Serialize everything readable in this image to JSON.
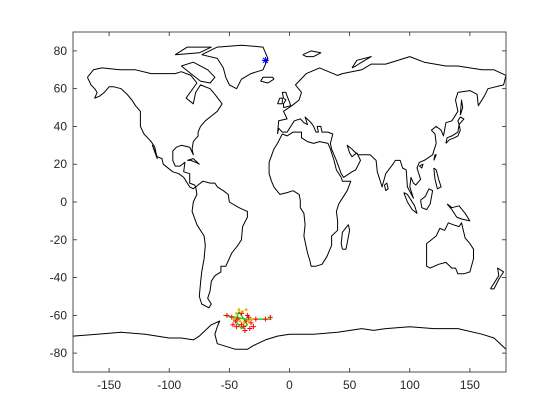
{
  "chart_data": {
    "type": "scatter",
    "xlim": [
      -180,
      180
    ],
    "ylim": [
      -90,
      90
    ],
    "x_ticks": [
      -150,
      -100,
      -50,
      0,
      50,
      100,
      150
    ],
    "y_ticks": [
      -80,
      -60,
      -40,
      -20,
      0,
      20,
      40,
      60,
      80
    ],
    "grid": false,
    "background_map": "world coastline outlines",
    "colors": {
      "axes": "#262626",
      "coastline": "#000000",
      "marker_star": "#0000ff",
      "track_green": "#00cc00",
      "track_red": "#ff0000",
      "track_yellow": "#e6b800"
    },
    "series": [
      {
        "marker": "asterisk",
        "color": "#0000ff",
        "points": [
          [
            -20,
            75
          ]
        ]
      },
      {
        "marker": "line",
        "color": "#00cc00",
        "points": [
          [
            -55,
            -60
          ],
          [
            -45,
            -61
          ],
          [
            -36,
            -62
          ],
          [
            -25,
            -62
          ],
          [
            -15,
            -62
          ]
        ]
      },
      {
        "marker": "line",
        "color": "#00cc00",
        "points": [
          [
            -42,
            -58
          ],
          [
            -38,
            -62
          ],
          [
            -35,
            -65
          ],
          [
            -40,
            -67
          ],
          [
            -45,
            -63
          ],
          [
            -42,
            -58
          ]
        ]
      },
      {
        "marker": "plus",
        "color": "#ff0000",
        "points": [
          [
            -52,
            -60
          ],
          [
            -48,
            -61
          ],
          [
            -45,
            -63
          ],
          [
            -43,
            -62
          ],
          [
            -40,
            -65
          ],
          [
            -38,
            -66
          ],
          [
            -36,
            -63
          ],
          [
            -34,
            -61
          ],
          [
            -32,
            -64
          ],
          [
            -30,
            -66
          ],
          [
            -35,
            -60
          ],
          [
            -40,
            -59
          ],
          [
            -44,
            -66
          ],
          [
            -47,
            -65
          ],
          [
            -37,
            -68
          ],
          [
            -33,
            -67
          ],
          [
            -28,
            -62
          ],
          [
            -20,
            -62
          ],
          [
            -16,
            -61
          ]
        ]
      },
      {
        "marker": "dot",
        "color": "#e6b800",
        "points": [
          [
            -42,
            -57
          ],
          [
            -39,
            -58
          ],
          [
            -36,
            -57
          ],
          [
            -44,
            -59
          ],
          [
            -46,
            -62
          ],
          [
            -41,
            -63
          ],
          [
            -38,
            -64
          ],
          [
            -34,
            -63
          ],
          [
            -31,
            -62
          ]
        ]
      }
    ]
  }
}
